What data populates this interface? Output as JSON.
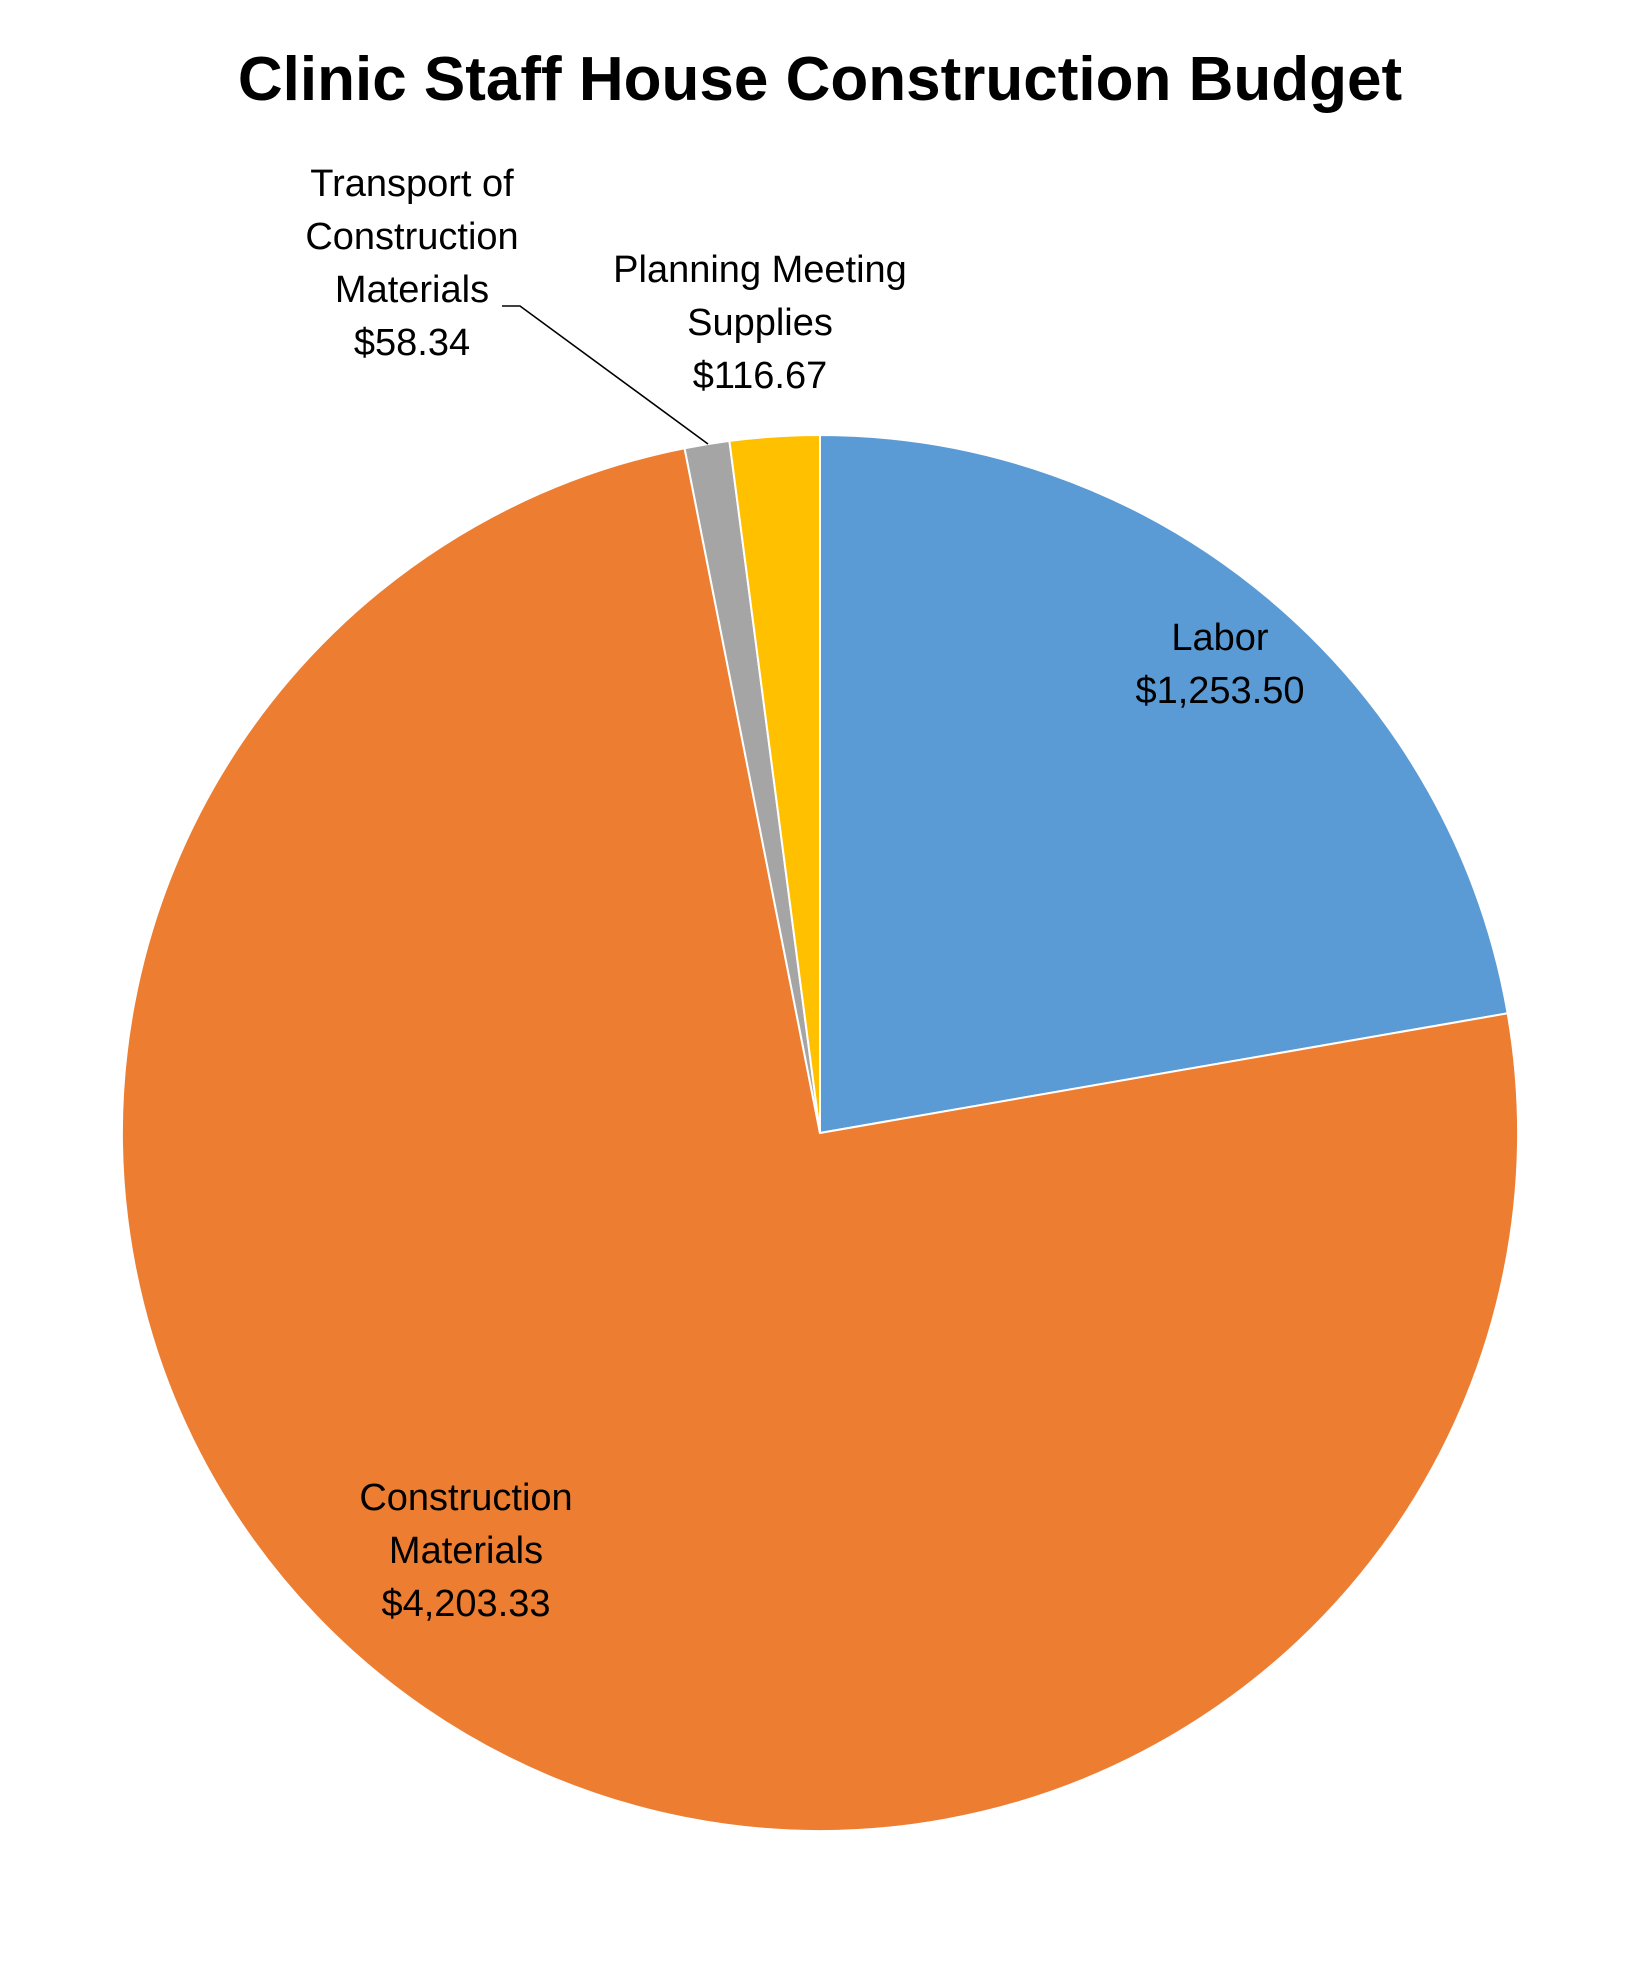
{
  "chart_data": {
    "type": "pie",
    "title": "Clinic Staff House Construction Budget",
    "start_angle_deg": 0,
    "direction": "clockwise",
    "slices": [
      {
        "label_lines": [
          "Labor"
        ],
        "value_text": "$1,253.50",
        "value": 1253.5,
        "color": "#5B9BD5"
      },
      {
        "label_lines": [
          "Construction",
          "Materials"
        ],
        "value_text": "$4,203.33",
        "value": 4203.33,
        "color": "#ED7D31"
      },
      {
        "label_lines": [
          "Transport of",
          "Construction",
          "Materials"
        ],
        "value_text": "$58.34",
        "value": 58.34,
        "color": "#A5A5A5"
      },
      {
        "label_lines": [
          "Planning Meeting",
          "Supplies"
        ],
        "value_text": "$116.67",
        "value": 116.67,
        "color": "#FFC000"
      }
    ],
    "legend": "none",
    "data_labels": "category name and value"
  }
}
